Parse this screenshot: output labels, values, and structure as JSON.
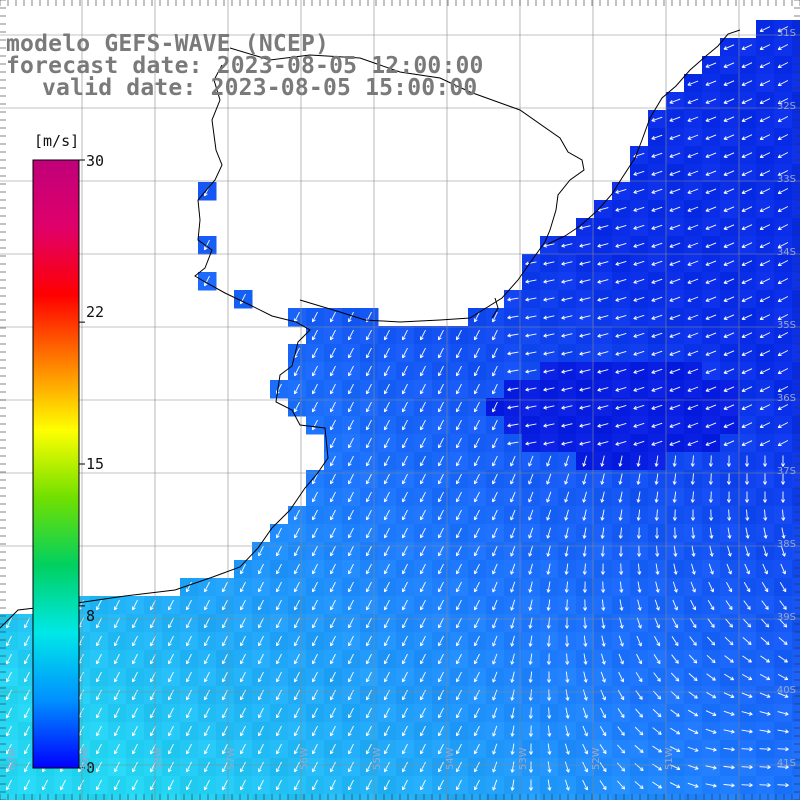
{
  "titles": {
    "model": "modelo GEFS-WAVE (NCEP)",
    "forecast": "forecast date: 2023-08-05 12:00:00",
    "valid": "valid date: 2023-08-05 15:00:00"
  },
  "colorbar": {
    "unit": "[m/s]",
    "ticks": [
      "30",
      "22",
      "15",
      "8",
      "0"
    ],
    "tick_values": [
      30,
      22,
      15,
      8,
      0
    ],
    "range": [
      0,
      30
    ],
    "colors": [
      "#0000ff",
      "#0090ff",
      "#00e8e8",
      "#00d060",
      "#70e000",
      "#ffff00",
      "#ff8000",
      "#ff0000",
      "#e0006a",
      "#c0007a"
    ]
  },
  "map": {
    "variable": "wind speed and direction",
    "land_color": "#ffffff",
    "grid_color": "#888888",
    "lat_labels": [
      "31S",
      "32S",
      "33S",
      "34S",
      "35S",
      "36S",
      "37S",
      "38S",
      "39S",
      "40S",
      "41S"
    ],
    "lon_labels": [
      "60W",
      "59W",
      "58W",
      "57W",
      "56W",
      "55W",
      "54W",
      "53W",
      "52W",
      "51W"
    ],
    "ocean_palette": {
      "low": "#0a2ee8",
      "mid": "#1f7bff",
      "high": "#24d6f2"
    }
  }
}
